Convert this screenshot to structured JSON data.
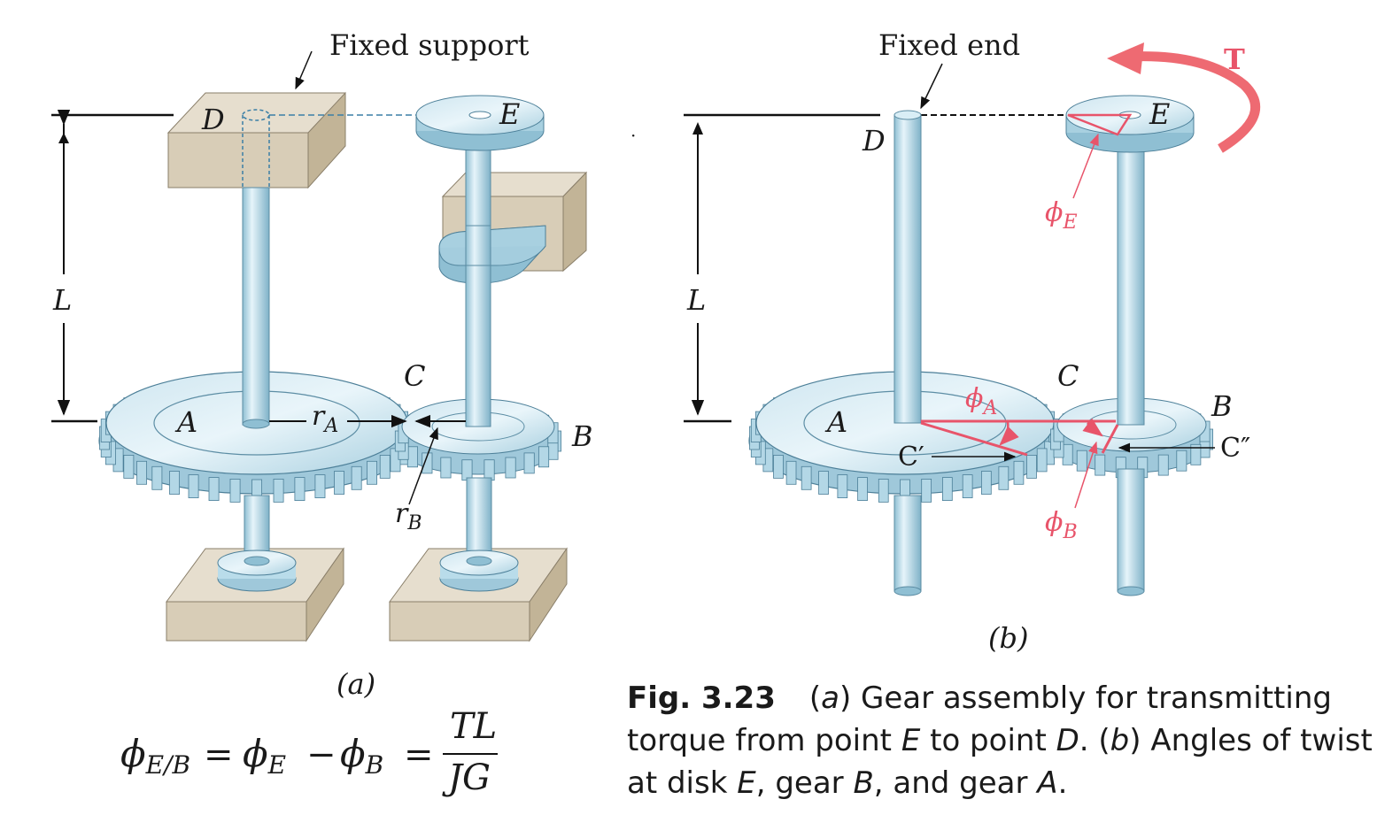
{
  "panel_a": {
    "fixed_support": "Fixed support",
    "D": "D",
    "E": "E",
    "L": "L",
    "C": "C",
    "A": "A",
    "B": "B",
    "rA_main": "r",
    "rA_sub": "A",
    "rB_main": "r",
    "rB_sub": "B",
    "label": "(a)"
  },
  "panel_b": {
    "fixed_end": "Fixed end",
    "T": "T",
    "D": "D",
    "E": "E",
    "L": "L",
    "C": "C",
    "A": "A",
    "B": "B",
    "C_prime": "C′",
    "C_double_prime": "C″",
    "phi": "ϕ",
    "phi_A_sub": "A",
    "phi_B_sub": "B",
    "phi_E_sub": "E",
    "label": "(b)"
  },
  "formula": {
    "phi": "ϕ",
    "sub_EB": "E/B",
    "eq1": "=",
    "sub_E": "E",
    "minus": "−",
    "sub_B": "B",
    "eq2": "=",
    "numerator": "TL",
    "denominator": "JG"
  },
  "caption": {
    "fig_number": "Fig. 3.23",
    "a_tag": "a",
    "line1_text": " Gear assembly for transmitting",
    "line2_a": "torque from point ",
    "line2_E": "E",
    "line2_b": " to point ",
    "line2_D": "D",
    "line2_c": ". (",
    "b_tag": "b",
    "line2_d": ") Angles of twist",
    "line3_a": "at disk ",
    "line3_E": "E",
    "line3_b": ", gear ",
    "line3_B": "B",
    "line3_c": ", and gear ",
    "line3_A": "A",
    "line3_d": "."
  },
  "colors": {
    "shaft": "#b9dcea",
    "block": "#d8cdb7",
    "red": "#e8546a"
  }
}
